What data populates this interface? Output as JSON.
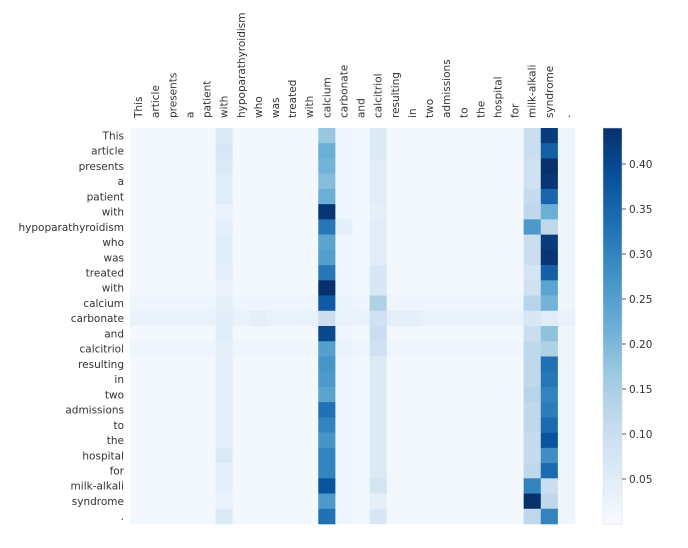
{
  "chart_data": {
    "type": "heatmap",
    "tokens": [
      "This",
      "article",
      "presents",
      "a",
      "patient",
      "with",
      "hypoparathyroidism",
      "who",
      "was",
      "treated",
      "with",
      "calcium",
      "carbonate",
      "and",
      "calcitriol",
      "resulting",
      "in",
      "two",
      "admissions",
      "to",
      "the",
      "hospital",
      "for",
      "milk-alkali",
      "syndrome",
      "."
    ],
    "colorbar": {
      "min": 0.0,
      "max": 0.44,
      "ticks": [
        "0.05",
        "0.10",
        "0.15",
        "0.20",
        "0.25",
        "0.30",
        "0.35",
        "0.40"
      ]
    },
    "colors": {
      "low": "#f7fbff",
      "high": "#08306b"
    },
    "values": [
      [
        0.01,
        0.01,
        0.01,
        0.01,
        0.01,
        0.06,
        0.01,
        0.01,
        0.01,
        0.01,
        0.01,
        0.17,
        0.02,
        0.01,
        0.06,
        0.01,
        0.01,
        0.01,
        0.01,
        0.01,
        0.01,
        0.01,
        0.01,
        0.1,
        0.42,
        0.02
      ],
      [
        0.01,
        0.01,
        0.01,
        0.01,
        0.01,
        0.07,
        0.01,
        0.01,
        0.01,
        0.01,
        0.01,
        0.22,
        0.02,
        0.01,
        0.06,
        0.01,
        0.01,
        0.01,
        0.01,
        0.01,
        0.01,
        0.01,
        0.01,
        0.1,
        0.36,
        0.02
      ],
      [
        0.01,
        0.01,
        0.01,
        0.01,
        0.01,
        0.06,
        0.01,
        0.01,
        0.01,
        0.01,
        0.01,
        0.21,
        0.02,
        0.01,
        0.05,
        0.01,
        0.01,
        0.01,
        0.01,
        0.01,
        0.01,
        0.01,
        0.01,
        0.09,
        0.44,
        0.02
      ],
      [
        0.01,
        0.01,
        0.01,
        0.01,
        0.01,
        0.05,
        0.01,
        0.01,
        0.01,
        0.01,
        0.01,
        0.19,
        0.02,
        0.01,
        0.05,
        0.01,
        0.01,
        0.01,
        0.01,
        0.01,
        0.01,
        0.01,
        0.01,
        0.09,
        0.43,
        0.02
      ],
      [
        0.01,
        0.01,
        0.01,
        0.01,
        0.01,
        0.05,
        0.01,
        0.01,
        0.01,
        0.01,
        0.01,
        0.22,
        0.02,
        0.01,
        0.05,
        0.01,
        0.01,
        0.01,
        0.01,
        0.01,
        0.01,
        0.01,
        0.01,
        0.11,
        0.35,
        0.02
      ],
      [
        0.01,
        0.01,
        0.01,
        0.01,
        0.01,
        0.03,
        0.01,
        0.01,
        0.01,
        0.01,
        0.01,
        0.43,
        0.02,
        0.01,
        0.04,
        0.01,
        0.01,
        0.01,
        0.01,
        0.01,
        0.01,
        0.01,
        0.01,
        0.12,
        0.22,
        0.02
      ],
      [
        0.01,
        0.01,
        0.01,
        0.01,
        0.01,
        0.04,
        0.01,
        0.01,
        0.01,
        0.01,
        0.01,
        0.32,
        0.04,
        0.01,
        0.05,
        0.01,
        0.01,
        0.01,
        0.01,
        0.01,
        0.01,
        0.01,
        0.01,
        0.26,
        0.12,
        0.02
      ],
      [
        0.01,
        0.01,
        0.01,
        0.01,
        0.01,
        0.05,
        0.01,
        0.01,
        0.01,
        0.01,
        0.01,
        0.24,
        0.02,
        0.01,
        0.05,
        0.01,
        0.01,
        0.01,
        0.01,
        0.01,
        0.01,
        0.01,
        0.01,
        0.1,
        0.42,
        0.02
      ],
      [
        0.01,
        0.01,
        0.01,
        0.01,
        0.01,
        0.05,
        0.01,
        0.01,
        0.01,
        0.01,
        0.01,
        0.25,
        0.02,
        0.01,
        0.05,
        0.01,
        0.01,
        0.01,
        0.01,
        0.01,
        0.01,
        0.01,
        0.01,
        0.1,
        0.43,
        0.02
      ],
      [
        0.01,
        0.01,
        0.01,
        0.01,
        0.01,
        0.04,
        0.01,
        0.01,
        0.01,
        0.01,
        0.01,
        0.32,
        0.02,
        0.01,
        0.07,
        0.01,
        0.01,
        0.01,
        0.01,
        0.01,
        0.01,
        0.01,
        0.01,
        0.08,
        0.36,
        0.02
      ],
      [
        0.01,
        0.01,
        0.01,
        0.01,
        0.01,
        0.03,
        0.01,
        0.01,
        0.01,
        0.01,
        0.01,
        0.44,
        0.02,
        0.01,
        0.07,
        0.01,
        0.01,
        0.01,
        0.01,
        0.01,
        0.01,
        0.01,
        0.01,
        0.09,
        0.24,
        0.02
      ],
      [
        0.02,
        0.02,
        0.02,
        0.02,
        0.02,
        0.04,
        0.02,
        0.02,
        0.02,
        0.02,
        0.02,
        0.37,
        0.03,
        0.02,
        0.14,
        0.02,
        0.02,
        0.02,
        0.02,
        0.02,
        0.02,
        0.02,
        0.02,
        0.13,
        0.21,
        0.02
      ],
      [
        0.03,
        0.03,
        0.03,
        0.03,
        0.03,
        0.05,
        0.03,
        0.04,
        0.03,
        0.03,
        0.03,
        0.1,
        0.03,
        0.03,
        0.09,
        0.04,
        0.04,
        0.03,
        0.03,
        0.03,
        0.03,
        0.03,
        0.03,
        0.07,
        0.05,
        0.03
      ],
      [
        0.01,
        0.01,
        0.01,
        0.01,
        0.01,
        0.05,
        0.01,
        0.01,
        0.01,
        0.01,
        0.01,
        0.4,
        0.02,
        0.01,
        0.1,
        0.01,
        0.01,
        0.01,
        0.01,
        0.01,
        0.01,
        0.01,
        0.01,
        0.1,
        0.18,
        0.02
      ],
      [
        0.02,
        0.02,
        0.02,
        0.02,
        0.02,
        0.04,
        0.02,
        0.02,
        0.02,
        0.02,
        0.02,
        0.25,
        0.03,
        0.02,
        0.09,
        0.02,
        0.02,
        0.02,
        0.02,
        0.02,
        0.02,
        0.02,
        0.02,
        0.12,
        0.14,
        0.02
      ],
      [
        0.01,
        0.01,
        0.01,
        0.01,
        0.01,
        0.04,
        0.01,
        0.01,
        0.01,
        0.01,
        0.01,
        0.27,
        0.02,
        0.01,
        0.06,
        0.01,
        0.01,
        0.01,
        0.01,
        0.01,
        0.01,
        0.01,
        0.01,
        0.12,
        0.33,
        0.02
      ],
      [
        0.01,
        0.01,
        0.01,
        0.01,
        0.01,
        0.04,
        0.01,
        0.01,
        0.01,
        0.01,
        0.01,
        0.26,
        0.02,
        0.01,
        0.06,
        0.01,
        0.01,
        0.01,
        0.01,
        0.01,
        0.01,
        0.01,
        0.01,
        0.12,
        0.32,
        0.02
      ],
      [
        0.01,
        0.01,
        0.01,
        0.01,
        0.01,
        0.04,
        0.01,
        0.01,
        0.01,
        0.01,
        0.01,
        0.24,
        0.02,
        0.01,
        0.06,
        0.01,
        0.01,
        0.01,
        0.01,
        0.01,
        0.01,
        0.01,
        0.01,
        0.13,
        0.3,
        0.02
      ],
      [
        0.01,
        0.01,
        0.01,
        0.01,
        0.01,
        0.04,
        0.01,
        0.01,
        0.01,
        0.01,
        0.01,
        0.33,
        0.02,
        0.01,
        0.06,
        0.01,
        0.01,
        0.01,
        0.01,
        0.01,
        0.01,
        0.01,
        0.01,
        0.12,
        0.31,
        0.02
      ],
      [
        0.01,
        0.01,
        0.01,
        0.01,
        0.01,
        0.04,
        0.01,
        0.01,
        0.01,
        0.01,
        0.01,
        0.3,
        0.02,
        0.01,
        0.06,
        0.01,
        0.01,
        0.01,
        0.01,
        0.01,
        0.01,
        0.01,
        0.01,
        0.12,
        0.34,
        0.02
      ],
      [
        0.01,
        0.01,
        0.01,
        0.01,
        0.01,
        0.04,
        0.01,
        0.01,
        0.01,
        0.01,
        0.01,
        0.27,
        0.02,
        0.01,
        0.06,
        0.01,
        0.01,
        0.01,
        0.01,
        0.01,
        0.01,
        0.01,
        0.01,
        0.11,
        0.38,
        0.02
      ],
      [
        0.01,
        0.01,
        0.01,
        0.01,
        0.01,
        0.06,
        0.01,
        0.01,
        0.01,
        0.01,
        0.01,
        0.3,
        0.02,
        0.01,
        0.06,
        0.01,
        0.01,
        0.01,
        0.01,
        0.01,
        0.01,
        0.01,
        0.01,
        0.11,
        0.28,
        0.02
      ],
      [
        0.01,
        0.01,
        0.01,
        0.01,
        0.01,
        0.04,
        0.01,
        0.01,
        0.01,
        0.01,
        0.01,
        0.3,
        0.02,
        0.01,
        0.06,
        0.01,
        0.01,
        0.01,
        0.01,
        0.01,
        0.01,
        0.01,
        0.01,
        0.12,
        0.34,
        0.02
      ],
      [
        0.01,
        0.01,
        0.01,
        0.01,
        0.01,
        0.04,
        0.01,
        0.01,
        0.01,
        0.01,
        0.01,
        0.38,
        0.02,
        0.01,
        0.08,
        0.01,
        0.01,
        0.01,
        0.01,
        0.01,
        0.01,
        0.01,
        0.01,
        0.3,
        0.1,
        0.02
      ],
      [
        0.01,
        0.01,
        0.01,
        0.01,
        0.01,
        0.03,
        0.01,
        0.01,
        0.01,
        0.01,
        0.01,
        0.26,
        0.02,
        0.01,
        0.04,
        0.01,
        0.01,
        0.01,
        0.01,
        0.01,
        0.01,
        0.01,
        0.01,
        0.44,
        0.12,
        0.02
      ],
      [
        0.01,
        0.01,
        0.01,
        0.01,
        0.01,
        0.06,
        0.01,
        0.01,
        0.01,
        0.01,
        0.01,
        0.33,
        0.02,
        0.01,
        0.07,
        0.01,
        0.01,
        0.01,
        0.01,
        0.01,
        0.01,
        0.01,
        0.01,
        0.12,
        0.3,
        0.02
      ]
    ]
  }
}
